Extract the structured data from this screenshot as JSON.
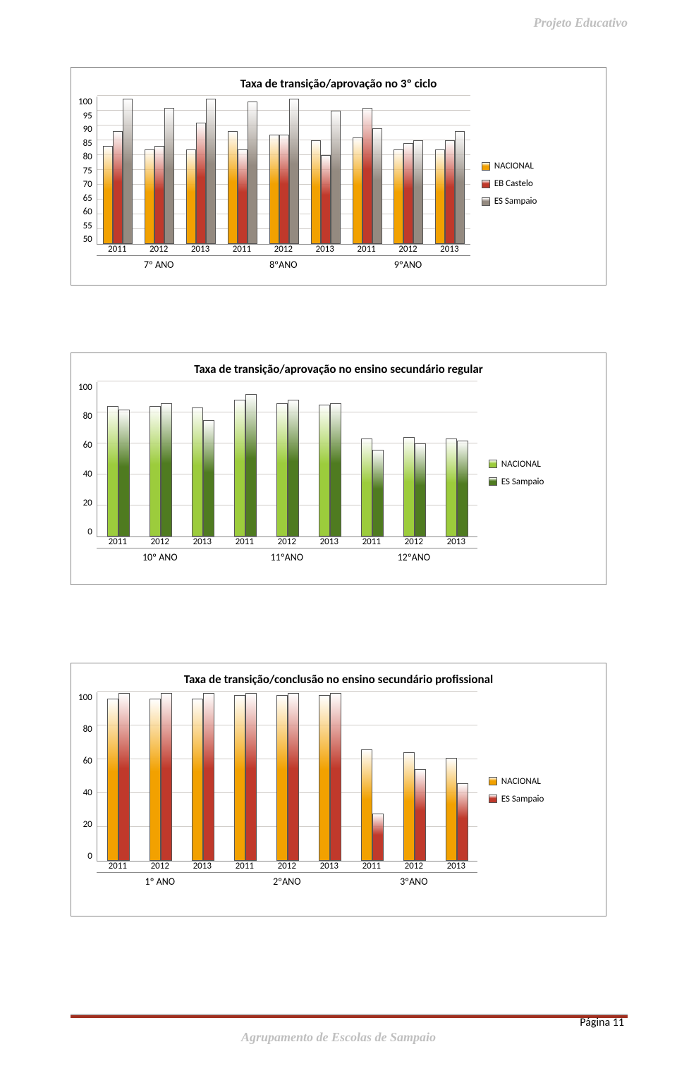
{
  "header": {
    "title": "Projeto Educativo"
  },
  "footer": {
    "text": "Agrupamento de Escolas de Sampaio",
    "page": "Página 11"
  },
  "colors": {
    "orange": "#f2a100",
    "red": "#c0392b",
    "gray": "#948a80",
    "green_light": "#9ccc3c",
    "green_dark": "#4f7b20"
  },
  "chart1": {
    "title": "Taxa de transição/aprovação no 3º ciclo",
    "ymin": 50,
    "ymax": 100,
    "ystep": 5,
    "groups": [
      "7º ANO",
      "8ºANO",
      "9ºANO"
    ],
    "inner": [
      "2011",
      "2012",
      "2013",
      "2011",
      "2012",
      "2013",
      "2011",
      "2012",
      "2013"
    ],
    "series": [
      {
        "label": "NACIONAL",
        "colorKey": "orange",
        "values": [
          83,
          82,
          82,
          88,
          87,
          85,
          86,
          82,
          82
        ]
      },
      {
        "label": "EB Castelo",
        "colorKey": "red",
        "values": [
          88,
          83,
          91,
          82,
          87,
          80,
          96,
          84,
          85
        ]
      },
      {
        "label": "ES Sampaio",
        "colorKey": "gray",
        "values": [
          99,
          96,
          99,
          98,
          99,
          95,
          89,
          85,
          88
        ]
      }
    ]
  },
  "chart2": {
    "title": "Taxa de transição/aprovação no ensino secundário regular",
    "ymin": 0,
    "ymax": 100,
    "ystep": 20,
    "groups": [
      "10º ANO",
      "11ºANO",
      "12ºANO"
    ],
    "inner": [
      "2011",
      "2012",
      "2013",
      "2011",
      "2012",
      "2013",
      "2011",
      "2012",
      "2013"
    ],
    "series": [
      {
        "label": "NACIONAL",
        "colorKey": "green_light",
        "values": [
          84,
          84,
          83,
          88,
          86,
          85,
          63,
          64,
          63
        ]
      },
      {
        "label": "ES Sampaio",
        "colorKey": "green_dark",
        "values": [
          82,
          86,
          75,
          92,
          88,
          86,
          56,
          60,
          62
        ]
      }
    ]
  },
  "chart3": {
    "title": "Taxa de transição/conclusão no ensino secundário profissional",
    "ymin": 0,
    "ymax": 100,
    "ystep": 20,
    "groups": [
      "1º ANO",
      "2ºANO",
      "3ºANO"
    ],
    "inner": [
      "2011",
      "2012",
      "2013",
      "2011",
      "2012",
      "2013",
      "2011",
      "2012",
      "2013"
    ],
    "series": [
      {
        "label": "NACIONAL",
        "colorKey": "orange",
        "values": [
          96,
          96,
          96,
          98,
          98,
          98,
          66,
          64,
          61
        ]
      },
      {
        "label": "ES Sampaio",
        "colorKey": "red",
        "values": [
          99,
          99,
          99,
          99,
          99,
          99,
          28,
          54,
          46
        ]
      }
    ]
  }
}
